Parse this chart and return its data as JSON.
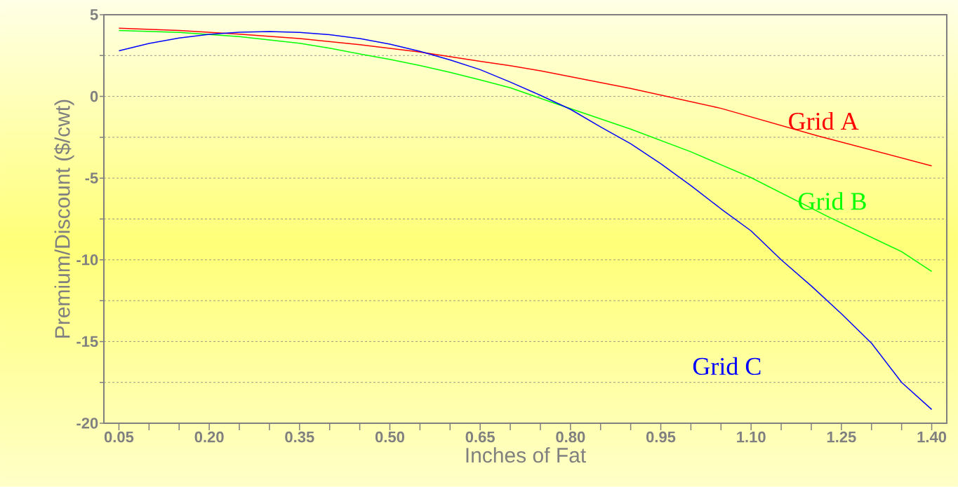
{
  "chart_data": {
    "type": "line",
    "xlabel": "Inches of Fat",
    "ylabel": "Premium/Discount ($/cwt)",
    "xlim": [
      0.025,
      1.425
    ],
    "ylim": [
      -20,
      5
    ],
    "xticks": [
      {
        "value": 0.05,
        "label": "0.05"
      },
      {
        "value": 0.1,
        "label": null
      },
      {
        "value": 0.15,
        "label": null
      },
      {
        "value": 0.2,
        "label": "0.20"
      },
      {
        "value": 0.25,
        "label": null
      },
      {
        "value": 0.3,
        "label": null
      },
      {
        "value": 0.35,
        "label": "0.35"
      },
      {
        "value": 0.4,
        "label": null
      },
      {
        "value": 0.45,
        "label": null
      },
      {
        "value": 0.5,
        "label": "0.50"
      },
      {
        "value": 0.55,
        "label": null
      },
      {
        "value": 0.6,
        "label": null
      },
      {
        "value": 0.65,
        "label": "0.65"
      },
      {
        "value": 0.7,
        "label": null
      },
      {
        "value": 0.75,
        "label": null
      },
      {
        "value": 0.8,
        "label": "0.80"
      },
      {
        "value": 0.85,
        "label": null
      },
      {
        "value": 0.9,
        "label": null
      },
      {
        "value": 0.95,
        "label": "0.95"
      },
      {
        "value": 1.0,
        "label": null
      },
      {
        "value": 1.05,
        "label": null
      },
      {
        "value": 1.1,
        "label": "1.10"
      },
      {
        "value": 1.15,
        "label": null
      },
      {
        "value": 1.2,
        "label": null
      },
      {
        "value": 1.25,
        "label": "1.25"
      },
      {
        "value": 1.3,
        "label": null
      },
      {
        "value": 1.35,
        "label": null
      },
      {
        "value": 1.4,
        "label": "1.40"
      }
    ],
    "yticks": [
      5,
      {
        "value": 2.5,
        "label": null
      },
      0,
      {
        "value": -2.5,
        "label": null
      },
      -5,
      {
        "value": -7.5,
        "label": null
      },
      -10,
      {
        "value": -12.5,
        "label": null
      },
      -15,
      {
        "value": -17.5,
        "label": null
      },
      -20
    ],
    "grid": "y",
    "series": [
      {
        "name": "Grid A",
        "color": "#ff0000",
        "x": [
          0.05,
          0.15,
          0.25,
          0.35,
          0.45,
          0.55,
          0.65,
          0.7,
          0.75,
          0.9,
          1.05,
          1.21,
          1.4
        ],
        "values": [
          4.17,
          4.04,
          3.81,
          3.54,
          3.17,
          2.72,
          2.15,
          1.88,
          1.57,
          0.49,
          -0.73,
          -2.41,
          -4.25
        ]
      },
      {
        "name": "Grid B",
        "color": "#00ff00",
        "x": [
          0.05,
          0.15,
          0.25,
          0.35,
          0.4,
          0.45,
          0.5,
          0.55,
          0.6,
          0.65,
          0.7,
          0.77,
          0.9,
          1.0,
          1.1,
          1.23,
          1.35,
          1.4
        ],
        "values": [
          4.04,
          3.92,
          3.66,
          3.25,
          2.95,
          2.6,
          2.27,
          1.89,
          1.47,
          1.01,
          0.53,
          -0.37,
          -2.0,
          -3.39,
          -4.97,
          -7.4,
          -9.5,
          -10.71
        ]
      },
      {
        "name": "Grid C",
        "color": "#0000ff",
        "x": [
          0.05,
          0.1,
          0.15,
          0.2,
          0.25,
          0.3,
          0.35,
          0.4,
          0.45,
          0.5,
          0.55,
          0.6,
          0.65,
          0.7,
          0.75,
          0.8,
          0.85,
          0.9,
          0.95,
          1.0,
          1.05,
          1.1,
          1.15,
          1.2,
          1.25,
          1.3,
          1.35,
          1.4
        ],
        "values": [
          2.79,
          3.24,
          3.57,
          3.8,
          3.93,
          3.97,
          3.92,
          3.78,
          3.54,
          3.2,
          2.76,
          2.23,
          1.64,
          0.88,
          0.07,
          -0.79,
          -1.87,
          -2.9,
          -4.12,
          -5.46,
          -6.88,
          -8.23,
          -10.0,
          -11.6,
          -13.3,
          -15.1,
          -17.5,
          -19.16
        ]
      }
    ]
  }
}
